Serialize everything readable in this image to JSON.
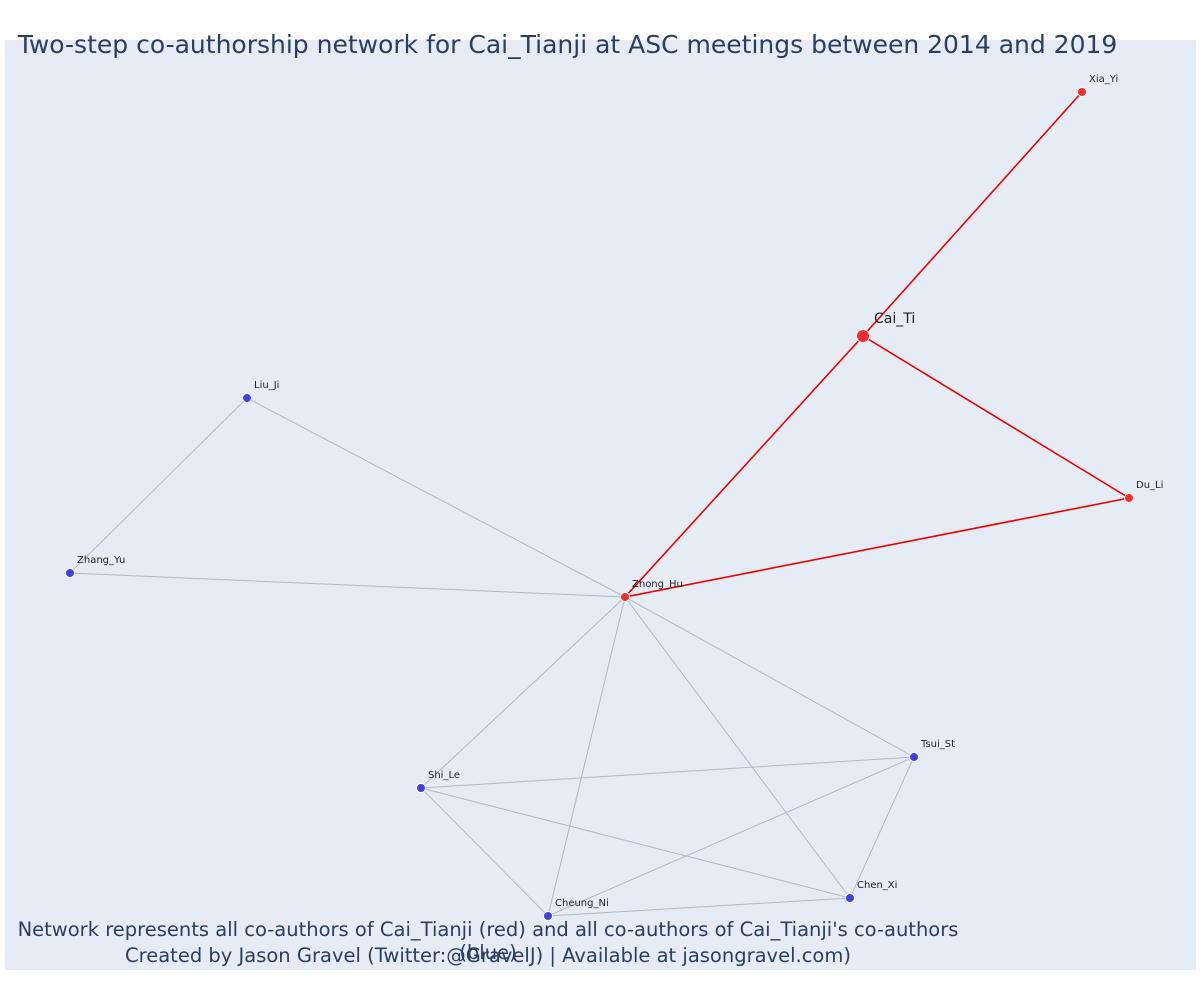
{
  "title": "Two-step co-authorship network for Cai_Tianji at ASC meetings between 2014 and 2019",
  "caption": {
    "line1": "Network represents all co-authors of Cai_Tianji (red) and all co-authors of Cai_Tianji's co-authors (blue)",
    "line2": "Created by Jason Gravel (Twitter:@GravelJ) | Available at jasongravel.com)"
  },
  "colors": {
    "background": "#e5ecf6",
    "focal": "#ff2a2a",
    "first_degree": "#ff2a2a",
    "second_degree": "#3a3ff0",
    "red_edge": "#ee0000",
    "grey_edge": "#b4b8c4",
    "text": "#2a3f5f"
  },
  "chart_data": {
    "type": "network",
    "nodes": [
      {
        "id": "Cai_Ti",
        "label": "Cai_Ti",
        "group": "focal"
      },
      {
        "id": "Xia_Yi",
        "label": "Xia_Yi",
        "group": "co-author"
      },
      {
        "id": "Du_Li",
        "label": "Du_Li",
        "group": "co-author"
      },
      {
        "id": "Zhong_Hu",
        "label": "Zhong_Hu",
        "group": "co-author"
      },
      {
        "id": "Liu_Ji",
        "label": "Liu_Ji",
        "group": "second-step"
      },
      {
        "id": "Zhang_Yu",
        "label": "Zhang_Yu",
        "group": "second-step"
      },
      {
        "id": "Shi_Le",
        "label": "Shi_Le",
        "group": "second-step"
      },
      {
        "id": "Tsui_St",
        "label": "Tsui_St",
        "group": "second-step"
      },
      {
        "id": "Chen_Xi",
        "label": "Chen_Xi",
        "group": "second-step"
      },
      {
        "id": "Cheung_Ni",
        "label": "Cheung_Ni",
        "group": "second-step"
      }
    ],
    "edges": [
      {
        "source": "Cai_Ti",
        "target": "Xia_Yi",
        "color": "red"
      },
      {
        "source": "Cai_Ti",
        "target": "Du_Li",
        "color": "red"
      },
      {
        "source": "Cai_Ti",
        "target": "Zhong_Hu",
        "color": "red"
      },
      {
        "source": "Zhong_Hu",
        "target": "Du_Li",
        "color": "red"
      },
      {
        "source": "Liu_Ji",
        "target": "Zhang_Yu",
        "color": "grey"
      },
      {
        "source": "Liu_Ji",
        "target": "Zhong_Hu",
        "color": "grey"
      },
      {
        "source": "Zhang_Yu",
        "target": "Zhong_Hu",
        "color": "grey"
      },
      {
        "source": "Zhong_Hu",
        "target": "Shi_Le",
        "color": "grey"
      },
      {
        "source": "Zhong_Hu",
        "target": "Cheung_Ni",
        "color": "grey"
      },
      {
        "source": "Zhong_Hu",
        "target": "Chen_Xi",
        "color": "grey"
      },
      {
        "source": "Zhong_Hu",
        "target": "Tsui_St",
        "color": "grey"
      },
      {
        "source": "Shi_Le",
        "target": "Tsui_St",
        "color": "grey"
      },
      {
        "source": "Shi_Le",
        "target": "Chen_Xi",
        "color": "grey"
      },
      {
        "source": "Shi_Le",
        "target": "Cheung_Ni",
        "color": "grey"
      },
      {
        "source": "Cheung_Ni",
        "target": "Tsui_St",
        "color": "grey"
      },
      {
        "source": "Cheung_Ni",
        "target": "Chen_Xi",
        "color": "grey"
      },
      {
        "source": "Tsui_St",
        "target": "Chen_Xi",
        "color": "grey"
      }
    ]
  }
}
